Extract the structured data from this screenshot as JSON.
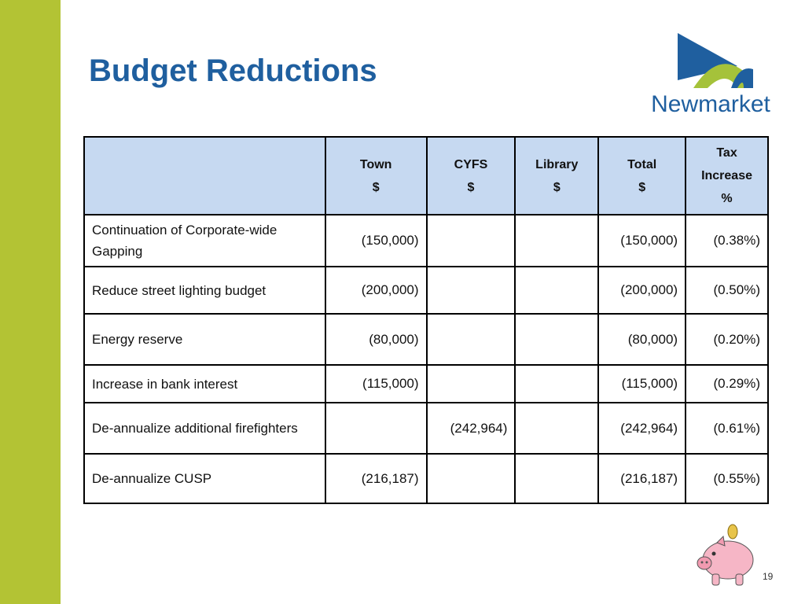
{
  "title": "Budget Reductions",
  "logo": {
    "text": "Newmarket"
  },
  "table": {
    "headers": [
      [
        "Town",
        "$"
      ],
      [
        "CYFS",
        "$"
      ],
      [
        "Library",
        "$"
      ],
      [
        "Total",
        "$"
      ],
      [
        "Tax",
        "Increase",
        "%"
      ]
    ],
    "rows": [
      [
        "Continuation of Corporate-wide Gapping",
        "(150,000)",
        null,
        null,
        "(150,000)",
        "(0.38%)"
      ],
      [
        "Reduce street lighting budget",
        "(200,000)",
        null,
        null,
        "(200,000)",
        "(0.50%)"
      ],
      [
        "Energy reserve",
        "(80,000)",
        null,
        null,
        "(80,000)",
        "(0.20%)"
      ],
      [
        "Increase in bank interest",
        "(115,000)",
        null,
        null,
        "(115,000)",
        "(0.29%)"
      ],
      [
        "De-annualize additional firefighters",
        null,
        "(242,964)",
        null,
        "(242,964)",
        "(0.61%)"
      ],
      [
        "De-annualize  CUSP",
        "(216,187)",
        null,
        null,
        "(216,187)",
        "(0.55%)"
      ]
    ]
  },
  "page_number": "19"
}
